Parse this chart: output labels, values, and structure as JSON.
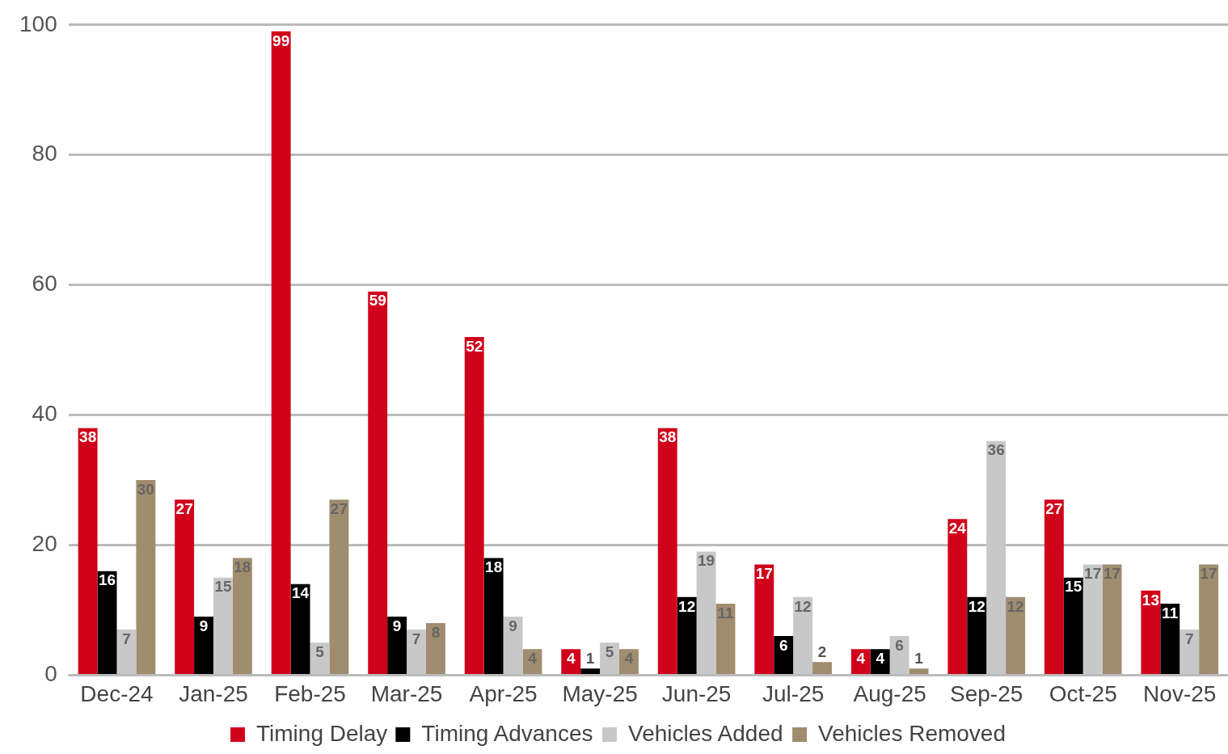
{
  "chart_data": {
    "type": "bar",
    "categories": [
      "Dec-24",
      "Jan-25",
      "Feb-25",
      "Mar-25",
      "Apr-25",
      "May-25",
      "Jun-25",
      "Jul-25",
      "Aug-25",
      "Sep-25",
      "Oct-25",
      "Nov-25"
    ],
    "series": [
      {
        "name": "Timing Delay",
        "color": "#d0021b",
        "values": [
          38,
          27,
          99,
          59,
          52,
          4,
          38,
          17,
          4,
          24,
          27,
          13
        ]
      },
      {
        "name": "Timing Advances",
        "color": "#000000",
        "values": [
          16,
          9,
          14,
          9,
          18,
          1,
          12,
          6,
          4,
          12,
          15,
          11
        ]
      },
      {
        "name": "Vehicles Added",
        "color": "#c8c8c8",
        "values": [
          7,
          15,
          5,
          7,
          9,
          5,
          19,
          12,
          6,
          36,
          17,
          7
        ]
      },
      {
        "name": "Vehicles Removed",
        "color": "#a08c6e",
        "values": [
          30,
          18,
          27,
          8,
          4,
          4,
          11,
          2,
          1,
          12,
          17,
          17
        ]
      }
    ],
    "ylim": [
      0,
      100
    ],
    "yticks": [
      0,
      20,
      40,
      60,
      80,
      100
    ],
    "grid": "y",
    "legend": "bottom",
    "data_labels": true
  }
}
